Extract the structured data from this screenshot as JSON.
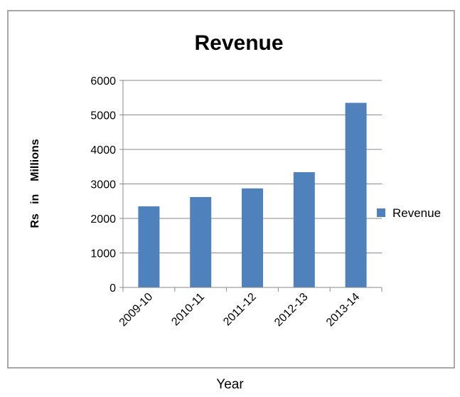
{
  "chart_data": {
    "type": "bar",
    "title": "Revenue",
    "xlabel": "Year",
    "ylabel": "Rs   in    Millions",
    "categories": [
      "2009-10",
      "2010-11",
      "2011-12",
      "2012-13",
      "2013-14"
    ],
    "series": [
      {
        "name": "Revenue",
        "values": [
          2350,
          2620,
          2870,
          3340,
          5350
        ],
        "color": "#4f81bd"
      }
    ],
    "ylim": [
      0,
      6000
    ],
    "yticks": [
      0,
      1000,
      2000,
      3000,
      4000,
      5000,
      6000
    ],
    "grid": true,
    "legend": "right"
  }
}
